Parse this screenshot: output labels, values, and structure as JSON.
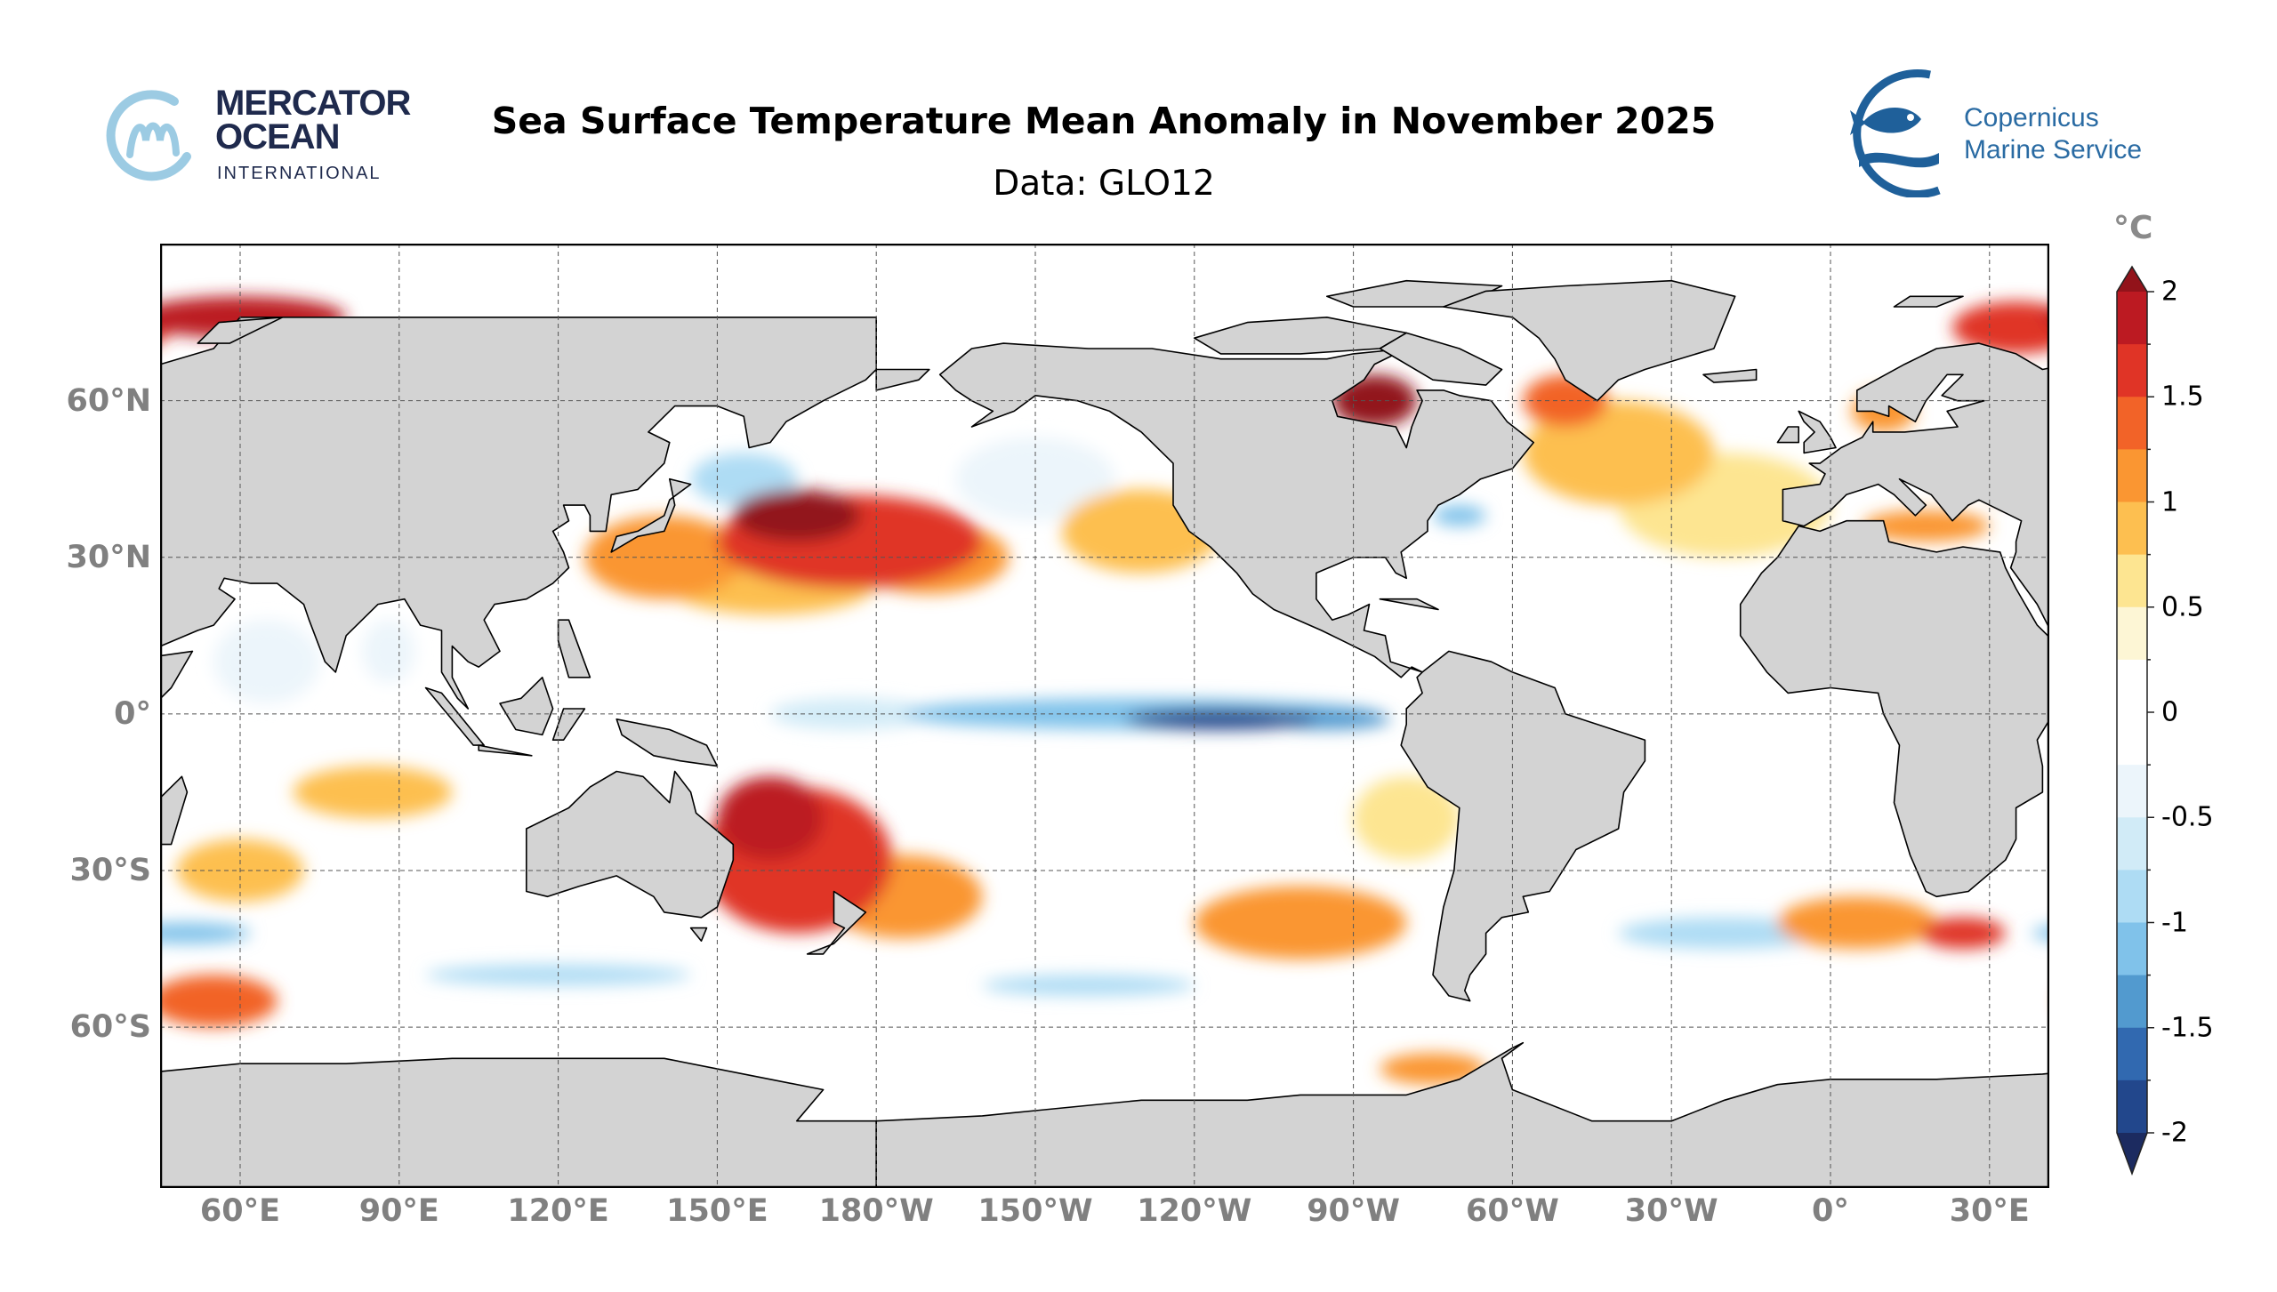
{
  "header": {
    "title": "Sea Surface Temperature Mean Anomaly in November 2025",
    "subtitle": "Data: GLO12"
  },
  "logos": {
    "mercator": {
      "line1": "MERCATOR",
      "line2": "OCEAN",
      "line3": "INTERNATIONAL"
    },
    "copernicus": {
      "line1": "Copernicus",
      "line2": "Marine Service"
    }
  },
  "map": {
    "lat_ticks": [
      {
        "value": 60,
        "label": "60°N"
      },
      {
        "value": 30,
        "label": "30°N"
      },
      {
        "value": 0,
        "label": "0°"
      },
      {
        "value": -30,
        "label": "30°S"
      },
      {
        "value": -60,
        "label": "60°S"
      }
    ],
    "lon_ticks": [
      {
        "value": 60,
        "label": "60°E"
      },
      {
        "value": 90,
        "label": "90°E"
      },
      {
        "value": 120,
        "label": "120°E"
      },
      {
        "value": 150,
        "label": "150°E"
      },
      {
        "value": 180,
        "label": "180°W"
      },
      {
        "value": 210,
        "label": "150°W"
      },
      {
        "value": 240,
        "label": "120°W"
      },
      {
        "value": 270,
        "label": "90°W"
      },
      {
        "value": 300,
        "label": "60°W"
      },
      {
        "value": 330,
        "label": "30°W"
      },
      {
        "value": 360,
        "label": "0°"
      },
      {
        "value": 390,
        "label": "30°E"
      }
    ],
    "land_color": "#d3d3d3",
    "ocean_color": "#ffffff"
  },
  "colorbar": {
    "unit": "°C",
    "min": -2,
    "max": 2,
    "step": 0.25,
    "ticks": [
      {
        "value": 2,
        "label": "2"
      },
      {
        "value": 1.5,
        "label": "1.5"
      },
      {
        "value": 1,
        "label": "1"
      },
      {
        "value": 0.5,
        "label": "0.5"
      },
      {
        "value": 0,
        "label": "0"
      },
      {
        "value": -0.5,
        "label": "-0.5"
      },
      {
        "value": -1,
        "label": "-1"
      },
      {
        "value": -1.5,
        "label": "-1.5"
      },
      {
        "value": -2,
        "label": "-2"
      }
    ],
    "colors_top_to_bottom": [
      "#bc1a22",
      "#e03426",
      "#f26328",
      "#fa9632",
      "#fdbf50",
      "#fde591",
      "#fdf6d5",
      "#ffffff",
      "#ffffff",
      "#ecf5fb",
      "#d1ebf7",
      "#aedcf4",
      "#80c2ea",
      "#529acf",
      "#3169b0",
      "#22478c"
    ],
    "extend_top_color": "#92131a",
    "extend_bottom_color": "#1c2b60"
  }
}
